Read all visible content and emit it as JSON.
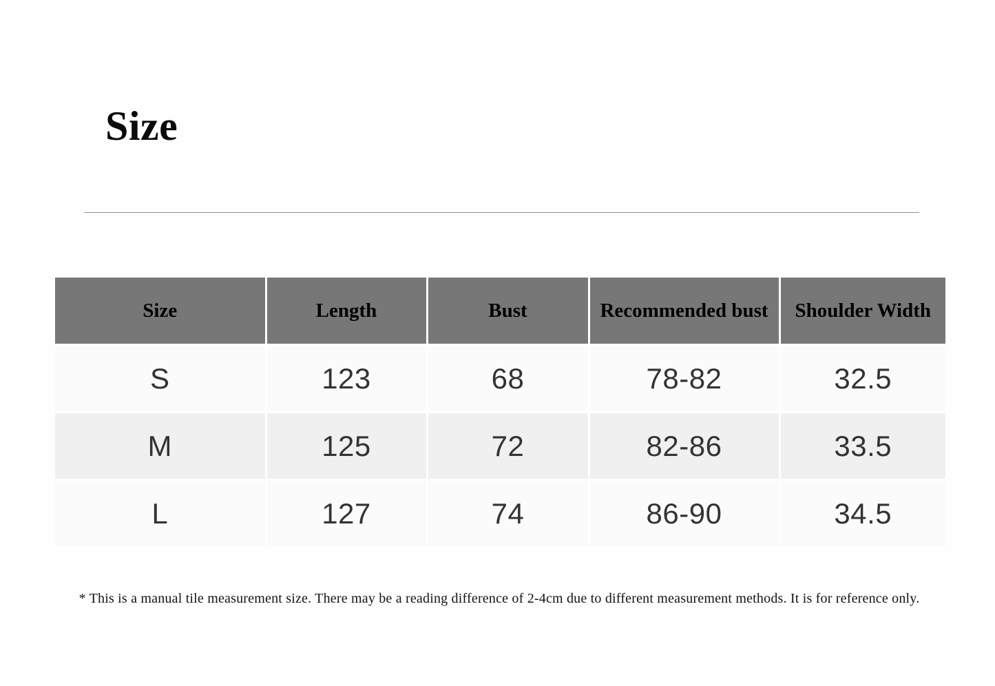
{
  "title": {
    "text": "Size"
  },
  "table": {
    "columns": [
      "Size",
      "Length",
      "Bust",
      "Recommended bust",
      "Shoulder Width"
    ],
    "rows": [
      [
        "S",
        "123",
        "68",
        "78-82",
        "32.5"
      ],
      [
        "M",
        "125",
        "72",
        "82-86",
        "33.5"
      ],
      [
        "L",
        "127",
        "74",
        "86-90",
        "34.5"
      ]
    ],
    "colors": {
      "header_background": "#777777",
      "header_text": "#000000",
      "row_background": "#fbfbfb",
      "row_background_alt": "#f0f0f0",
      "cell_text": "#333333",
      "divider": "#8a8a8a"
    }
  },
  "footnote": {
    "text": "* This is a manual tile measurement size. There may be a reading difference of 2-4cm due to different measurement methods. It is for reference only."
  }
}
